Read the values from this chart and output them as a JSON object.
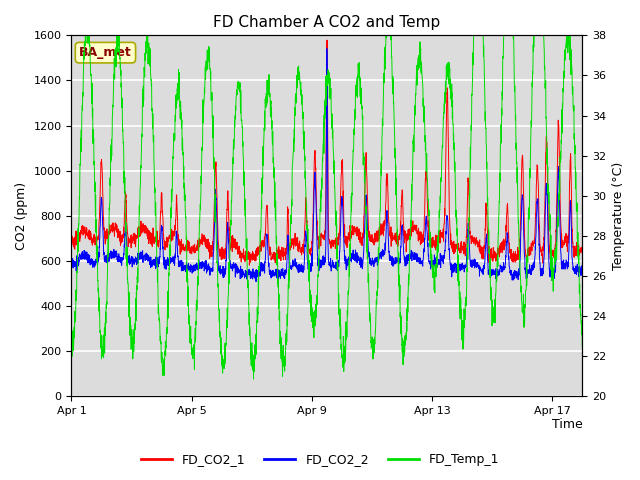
{
  "title": "FD Chamber A CO2 and Temp",
  "xlabel": "Time",
  "ylabel_left": "CO2 (ppm)",
  "ylabel_right": "Temperature (°C)",
  "ylim_left": [
    0,
    1600
  ],
  "ylim_right": [
    20,
    38
  ],
  "yticks_left": [
    0,
    200,
    400,
    600,
    800,
    1000,
    1200,
    1400,
    1600
  ],
  "yticks_right": [
    20,
    22,
    24,
    26,
    28,
    30,
    32,
    34,
    36,
    38
  ],
  "color_co2_1": "#ff0000",
  "color_co2_2": "#0000ff",
  "color_temp": "#00dd00",
  "plot_bg": "#dcdcdc",
  "grid_color": "#ffffff",
  "annotation_text": "BA_met",
  "annotation_box_color": "#ffffcc",
  "annotation_border_color": "#aaaa00",
  "annotation_text_color": "#880000",
  "legend_labels": [
    "FD_CO2_1",
    "FD_CO2_2",
    "FD_Temp_1"
  ],
  "xtick_labels": [
    "Apr 1",
    "Apr 5",
    "Apr 9",
    "Apr 13",
    "Apr 17"
  ],
  "xtick_positions": [
    0,
    4,
    8,
    12,
    16
  ],
  "n_days": 17,
  "figsize": [
    6.4,
    4.8
  ],
  "dpi": 100
}
